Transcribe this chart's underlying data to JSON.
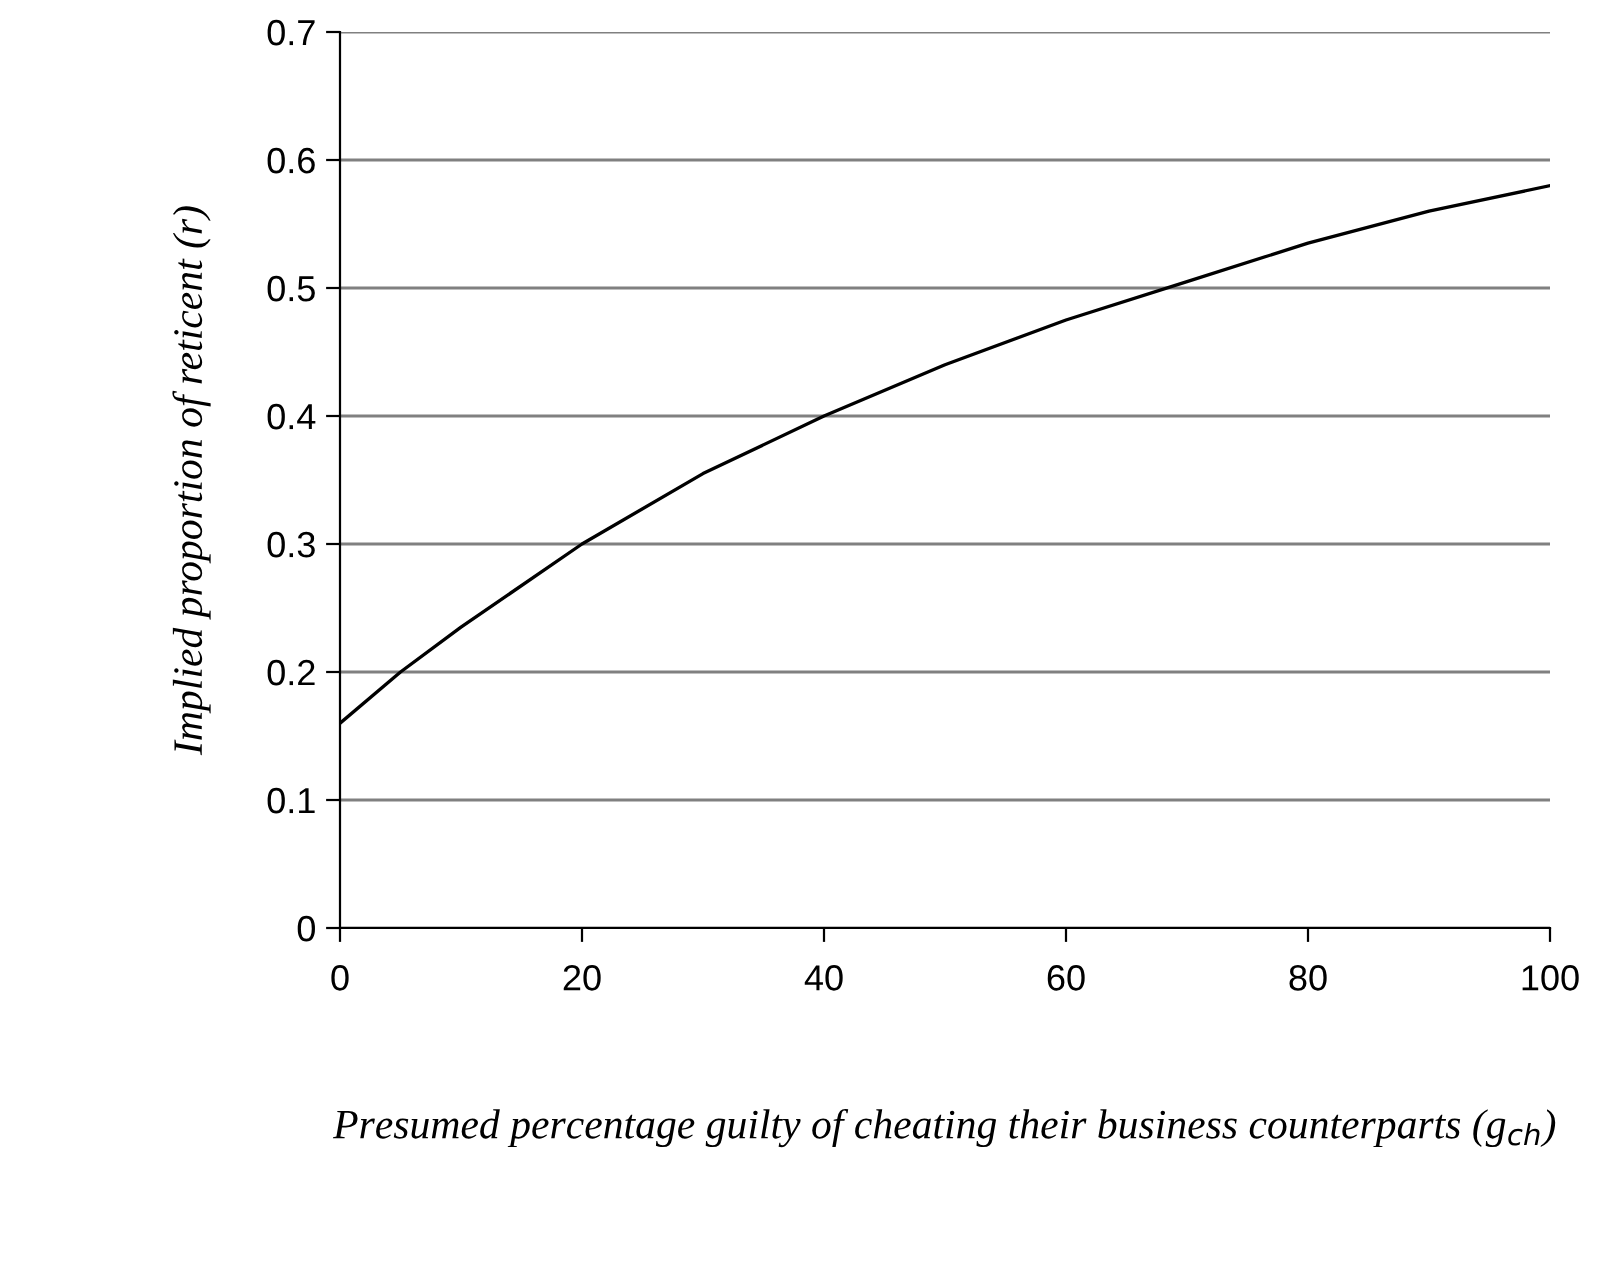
{
  "chart_data": {
    "type": "line",
    "xlabel": "Presumed percentage guilty of cheating their business counterparts (g$_{ch}$)",
    "ylabel": "Implied proportion of reticent (r)",
    "x": [
      0,
      5,
      10,
      20,
      30,
      40,
      50,
      60,
      70,
      80,
      90,
      100
    ],
    "series": [
      {
        "color": "#000000",
        "values": [
          0.16,
          0.2,
          0.235,
          0.3,
          0.355,
          0.4,
          0.44,
          0.475,
          0.505,
          0.535,
          0.56,
          0.58
        ]
      }
    ],
    "xlim": [
      0,
      100
    ],
    "ylim": [
      0,
      0.7
    ],
    "xticks": [
      0,
      20,
      40,
      60,
      80,
      100
    ],
    "yticks": [
      0,
      0.1,
      0.2,
      0.3,
      0.4,
      0.5,
      0.6,
      0.7
    ],
    "grid": "y",
    "legend": false,
    "marker": "none",
    "line_style": "solid"
  }
}
